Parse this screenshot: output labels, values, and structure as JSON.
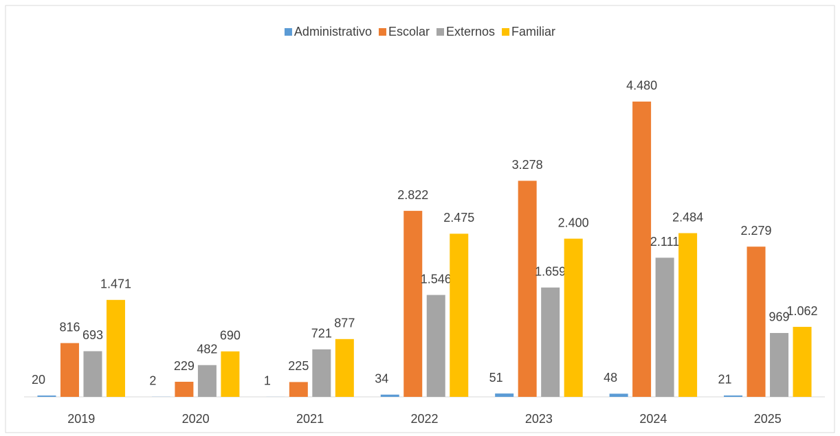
{
  "chart_data": {
    "type": "bar",
    "categories": [
      "2019",
      "2020",
      "2021",
      "2022",
      "2023",
      "2024",
      "2025"
    ],
    "series": [
      {
        "name": "Administrativo",
        "color": "#5b9bd5",
        "values": [
          20,
          2,
          1,
          34,
          51,
          48,
          21
        ]
      },
      {
        "name": "Escolar",
        "color": "#ed7d31",
        "values": [
          816,
          229,
          225,
          2822,
          3278,
          4480,
          2279
        ],
        "value_labels": [
          "816",
          "229",
          "225",
          "2.822",
          "3.278",
          "4.480",
          "2.279"
        ]
      },
      {
        "name": "Externos",
        "color": "#a5a5a5",
        "values": [
          693,
          482,
          721,
          1546,
          1659,
          2111,
          969
        ],
        "value_labels": [
          "693",
          "482",
          "721",
          "1.546",
          "1.659",
          "2.111",
          "969"
        ]
      },
      {
        "name": "Familiar",
        "color": "#ffc000",
        "values": [
          1471,
          690,
          877,
          2475,
          2400,
          2484,
          1062
        ],
        "value_labels": [
          "1.471",
          "690",
          "877",
          "2.475",
          "2.400",
          "2.484",
          "1.062"
        ]
      }
    ],
    "ylim": [
      0,
      5000
    ],
    "legend": "top"
  }
}
